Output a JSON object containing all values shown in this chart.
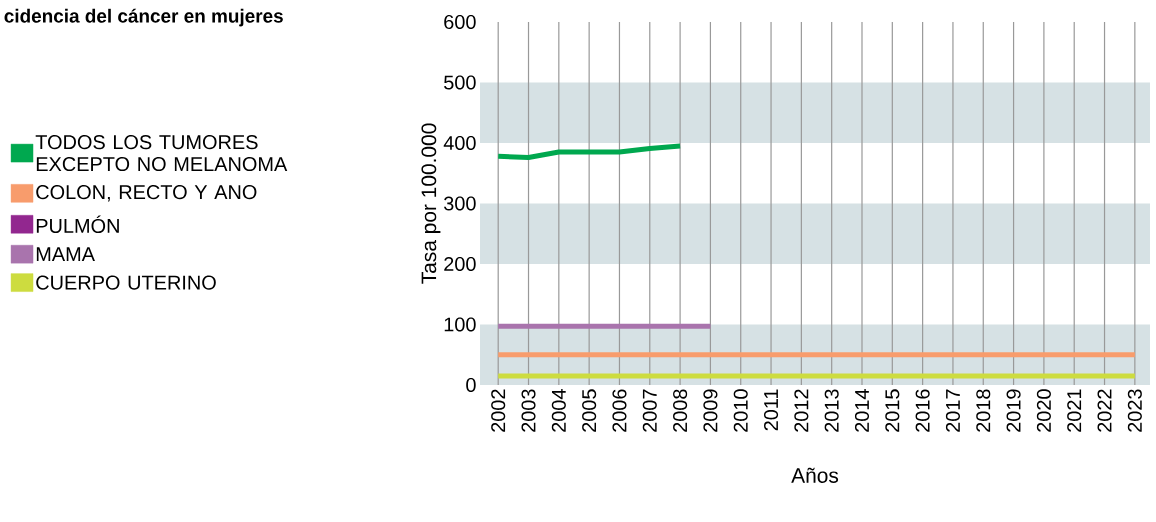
{
  "chart_data": {
    "type": "line",
    "title": "cidencia del cáncer en mujeres",
    "xlabel": "Años",
    "ylabel": "Tasa por 100.000",
    "categories": [
      "2002",
      "2003",
      "2004",
      "2005",
      "2006",
      "2007",
      "2008",
      "2009",
      "2010",
      "2011",
      "2012",
      "2013",
      "2014",
      "2015",
      "2016",
      "2017",
      "2018",
      "2019",
      "2020",
      "2021",
      "2022",
      "2023"
    ],
    "series": [
      {
        "name": "TODOS LOS TUMORES EXCEPTO NO MELANOMA",
        "color": "#00a84f",
        "values": [
          378,
          376,
          385,
          385,
          385,
          391,
          395,
          null,
          null,
          null,
          null,
          null,
          null,
          null,
          null,
          null,
          null,
          null,
          null,
          null,
          null,
          null
        ]
      },
      {
        "name": "COLON, RECTO Y ANO",
        "color": "#f89c6c",
        "values": [
          50,
          50,
          50,
          50,
          50,
          50,
          50,
          50,
          50,
          50,
          50,
          50,
          50,
          50,
          50,
          50,
          50,
          50,
          50,
          50,
          50,
          50
        ]
      },
      {
        "name": "PULMÓN",
        "color": "#92278f",
        "values": [
          null,
          null,
          null,
          null,
          null,
          null,
          null,
          null,
          null,
          null,
          null,
          null,
          null,
          null,
          null,
          null,
          null,
          null,
          null,
          null,
          null,
          null
        ]
      },
      {
        "name": "MAMA",
        "color": "#a974ad",
        "values": [
          97,
          97,
          97,
          97,
          97,
          97,
          97,
          97,
          null,
          null,
          null,
          null,
          null,
          null,
          null,
          null,
          null,
          null,
          null,
          null,
          null,
          null
        ]
      },
      {
        "name": "CUERPO UTERINO",
        "color": "#cddc3f",
        "values": [
          15,
          15,
          15,
          15,
          15,
          15,
          15,
          15,
          15,
          15,
          15,
          15,
          15,
          15,
          15,
          15,
          15,
          15,
          15,
          15,
          15,
          15
        ]
      }
    ],
    "ylim": [
      0,
      600
    ],
    "yticks": [
      0,
      100,
      200,
      300,
      400,
      500,
      600
    ],
    "bands": [
      {
        "axis": "y",
        "from": 0,
        "to": 100,
        "color": "#d6e1e4"
      },
      {
        "axis": "y",
        "from": 200,
        "to": 300,
        "color": "#d6e1e4"
      },
      {
        "axis": "y",
        "from": 400,
        "to": 500,
        "color": "#d6e1e4"
      }
    ],
    "grid": "x",
    "legend": "left",
    "marker": "none",
    "line_style": "solid"
  }
}
